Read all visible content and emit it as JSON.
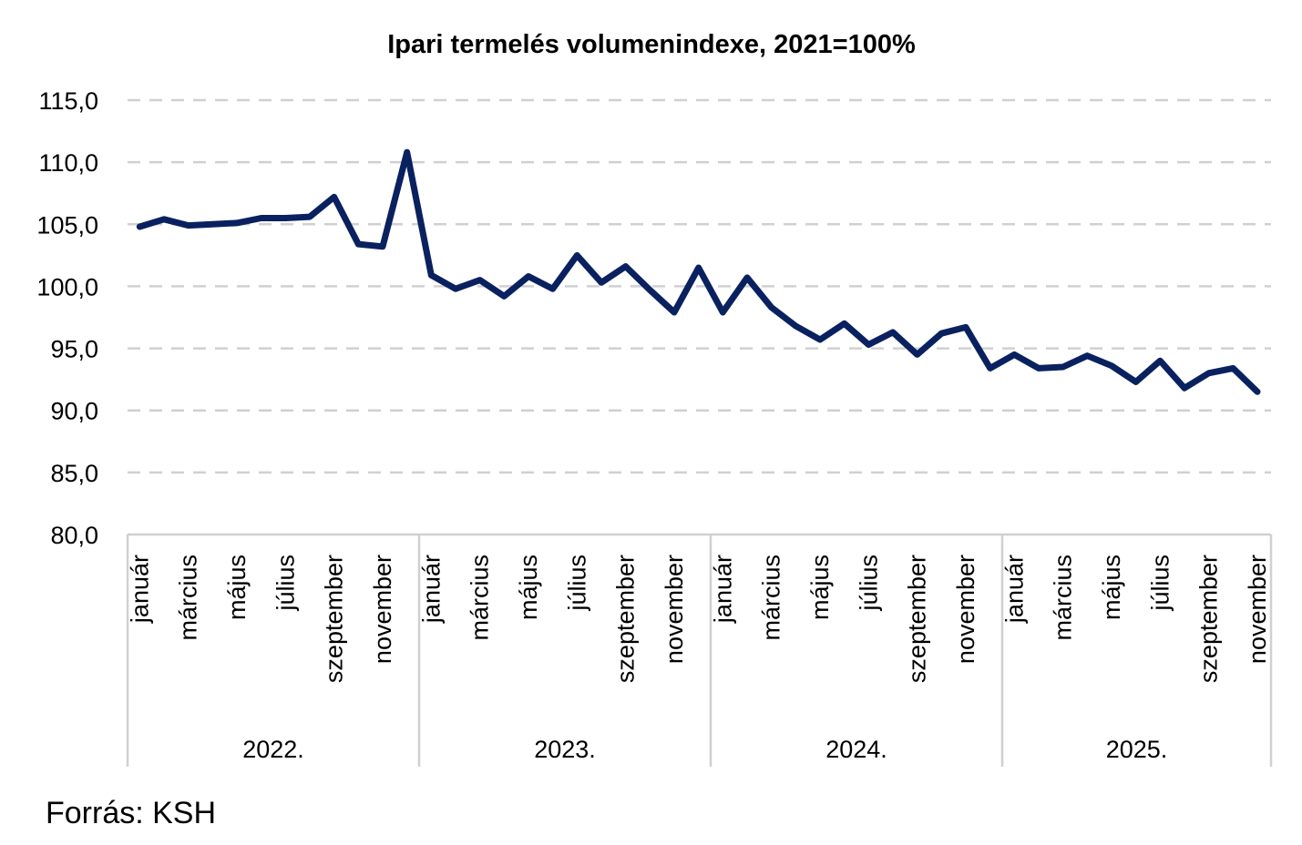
{
  "source_label": "Forrás: KSH",
  "chart_data": {
    "type": "line",
    "title": "Ipari termelés  volumenindexe, 2021=100%",
    "xlabel": "",
    "ylabel": "",
    "ylim": [
      80,
      115
    ],
    "yticks": [
      "80,0",
      "85,0",
      "90,0",
      "95,0",
      "100,0",
      "105,0",
      "110,0",
      "115,0"
    ],
    "ytick_values": [
      80,
      85,
      90,
      95,
      100,
      105,
      110,
      115
    ],
    "grid": true,
    "legend": "none",
    "years": [
      {
        "label": "2022.",
        "months": 12
      },
      {
        "label": "2023.",
        "months": 12
      },
      {
        "label": "2024.",
        "months": 12
      },
      {
        "label": "2025.",
        "months": 11
      }
    ],
    "month_labels": [
      "január",
      "",
      "március",
      "",
      "május",
      "",
      "július",
      "",
      "szeptember",
      "",
      "november",
      ""
    ],
    "series": [
      {
        "name": "Ipari termelés volumenindexe",
        "color": "#0a2160",
        "values": [
          104.8,
          105.4,
          104.9,
          105.0,
          105.1,
          105.5,
          105.5,
          105.6,
          107.2,
          103.4,
          103.2,
          110.8,
          100.9,
          99.8,
          100.5,
          99.2,
          100.8,
          99.8,
          102.5,
          100.3,
          101.6,
          99.7,
          97.9,
          101.5,
          97.9,
          100.7,
          98.3,
          96.8,
          95.7,
          97.0,
          95.3,
          96.3,
          94.5,
          96.2,
          96.7,
          93.4,
          94.5,
          93.4,
          93.5,
          94.4,
          93.6,
          92.3,
          94.0,
          91.8,
          93.0,
          93.4,
          91.5
        ]
      }
    ]
  }
}
